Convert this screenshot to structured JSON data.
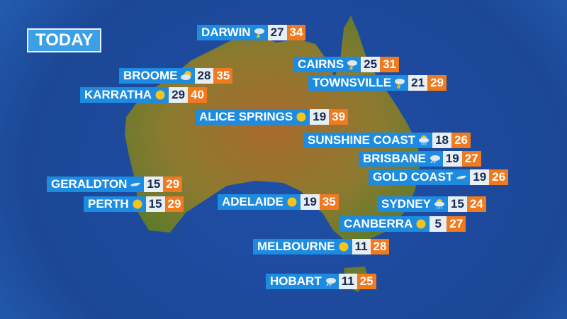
{
  "header": {
    "title": "TODAY"
  },
  "colors": {
    "label_bg": "#1c8be0",
    "min_bg": "#e9eef3",
    "max_bg": "#ef7a1f",
    "ocean": "#1f4fa8",
    "land": "#8a7a2e"
  },
  "cities": [
    {
      "name": "DARWIN",
      "icon": "storm-icon",
      "min": "27",
      "max": "34"
    },
    {
      "name": "CAIRNS",
      "icon": "storm-icon",
      "min": "25",
      "max": "31"
    },
    {
      "name": "TOWNSVILLE",
      "icon": "storm-icon",
      "min": "21",
      "max": "29"
    },
    {
      "name": "BROOME",
      "icon": "partly-cloudy-icon",
      "min": "28",
      "max": "35"
    },
    {
      "name": "KARRATHA",
      "icon": "sun-icon",
      "min": "29",
      "max": "40"
    },
    {
      "name": "ALICE SPRINGS",
      "icon": "sun-icon",
      "min": "19",
      "max": "39"
    },
    {
      "name": "SUNSHINE COAST",
      "icon": "showers-icon",
      "min": "18",
      "max": "26"
    },
    {
      "name": "BRISBANE",
      "icon": "shower-icon",
      "min": "19",
      "max": "27"
    },
    {
      "name": "GOLD COAST",
      "icon": "wind-icon",
      "min": "19",
      "max": "26"
    },
    {
      "name": "GERALDTON",
      "icon": "wind-icon",
      "min": "15",
      "max": "29"
    },
    {
      "name": "PERTH",
      "icon": "sun-icon",
      "min": "15",
      "max": "29"
    },
    {
      "name": "ADELAIDE",
      "icon": "sun-icon",
      "min": "19",
      "max": "35"
    },
    {
      "name": "SYDNEY",
      "icon": "showers-icon",
      "min": "15",
      "max": "24"
    },
    {
      "name": "CANBERRA",
      "icon": "sun-icon",
      "min": "5",
      "max": "27"
    },
    {
      "name": "MELBOURNE",
      "icon": "sun-icon",
      "min": "11",
      "max": "28"
    },
    {
      "name": "HOBART",
      "icon": "shower-icon",
      "min": "11",
      "max": "25"
    }
  ]
}
